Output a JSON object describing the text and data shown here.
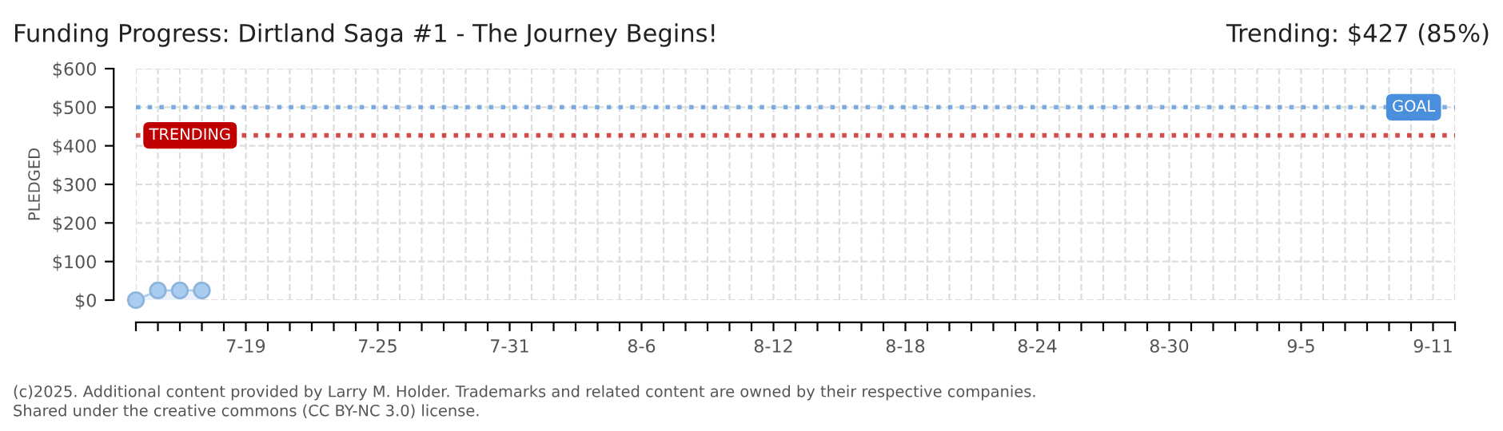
{
  "chart_data": {
    "type": "area",
    "title": "Funding Progress: Dirtland Saga #1 - The Journey Begins!",
    "ylabel": "PLEDGED",
    "x": [
      "2025-07-14",
      "2025-07-15",
      "2025-07-16",
      "2025-07-17"
    ],
    "series": [
      {
        "color": "#a8cdf0",
        "values": [
          0,
          25,
          25,
          25
        ]
      }
    ],
    "marker": "circle",
    "grid": true,
    "xlim": [
      "2025-07-14",
      "2025-09-12"
    ],
    "xticks": [
      {
        "value": "2025-07-14",
        "label": null
      },
      {
        "value": "2025-07-15",
        "label": null
      },
      {
        "value": "2025-07-16",
        "label": null
      },
      {
        "value": "2025-07-17",
        "label": null
      },
      {
        "value": "2025-07-18",
        "label": null
      },
      {
        "value": "2025-07-19",
        "label": "7-19"
      },
      {
        "value": "2025-07-20",
        "label": null
      },
      {
        "value": "2025-07-21",
        "label": null
      },
      {
        "value": "2025-07-22",
        "label": null
      },
      {
        "value": "2025-07-23",
        "label": null
      },
      {
        "value": "2025-07-24",
        "label": null
      },
      {
        "value": "2025-07-25",
        "label": "7-25"
      },
      {
        "value": "2025-07-26",
        "label": null
      },
      {
        "value": "2025-07-27",
        "label": null
      },
      {
        "value": "2025-07-28",
        "label": null
      },
      {
        "value": "2025-07-29",
        "label": null
      },
      {
        "value": "2025-07-30",
        "label": null
      },
      {
        "value": "2025-07-31",
        "label": "7-31"
      },
      {
        "value": "2025-08-01",
        "label": null
      },
      {
        "value": "2025-08-02",
        "label": null
      },
      {
        "value": "2025-08-03",
        "label": null
      },
      {
        "value": "2025-08-04",
        "label": null
      },
      {
        "value": "2025-08-05",
        "label": null
      },
      {
        "value": "2025-08-06",
        "label": "8-6"
      },
      {
        "value": "2025-08-07",
        "label": null
      },
      {
        "value": "2025-08-08",
        "label": null
      },
      {
        "value": "2025-08-09",
        "label": null
      },
      {
        "value": "2025-08-10",
        "label": null
      },
      {
        "value": "2025-08-11",
        "label": null
      },
      {
        "value": "2025-08-12",
        "label": "8-12"
      },
      {
        "value": "2025-08-13",
        "label": null
      },
      {
        "value": "2025-08-14",
        "label": null
      },
      {
        "value": "2025-08-15",
        "label": null
      },
      {
        "value": "2025-08-16",
        "label": null
      },
      {
        "value": "2025-08-17",
        "label": null
      },
      {
        "value": "2025-08-18",
        "label": "8-18"
      },
      {
        "value": "2025-08-19",
        "label": null
      },
      {
        "value": "2025-08-20",
        "label": null
      },
      {
        "value": "2025-08-21",
        "label": null
      },
      {
        "value": "2025-08-22",
        "label": null
      },
      {
        "value": "2025-08-23",
        "label": null
      },
      {
        "value": "2025-08-24",
        "label": "8-24"
      },
      {
        "value": "2025-08-25",
        "label": null
      },
      {
        "value": "2025-08-26",
        "label": null
      },
      {
        "value": "2025-08-27",
        "label": null
      },
      {
        "value": "2025-08-28",
        "label": null
      },
      {
        "value": "2025-08-29",
        "label": null
      },
      {
        "value": "2025-08-30",
        "label": "8-30"
      },
      {
        "value": "2025-08-31",
        "label": null
      },
      {
        "value": "2025-09-01",
        "label": null
      },
      {
        "value": "2025-09-02",
        "label": null
      },
      {
        "value": "2025-09-03",
        "label": null
      },
      {
        "value": "2025-09-04",
        "label": null
      },
      {
        "value": "2025-09-05",
        "label": "9-5"
      },
      {
        "value": "2025-09-06",
        "label": null
      },
      {
        "value": "2025-09-07",
        "label": null
      },
      {
        "value": "2025-09-08",
        "label": null
      },
      {
        "value": "2025-09-09",
        "label": null
      },
      {
        "value": "2025-09-10",
        "label": null
      },
      {
        "value": "2025-09-11",
        "label": "9-11"
      },
      {
        "value": "2025-09-12",
        "label": null
      }
    ],
    "ylim": [
      0,
      600
    ],
    "yticks": [
      {
        "value": 0,
        "label": "$0"
      },
      {
        "value": 100,
        "label": "$100"
      },
      {
        "value": 200,
        "label": "$200"
      },
      {
        "value": 300,
        "label": "$300"
      },
      {
        "value": 400,
        "label": "$400"
      },
      {
        "value": 500,
        "label": "$500"
      },
      {
        "value": 600,
        "label": "$600"
      }
    ],
    "ref_lines": [
      {
        "axis": "y",
        "value": 500,
        "label": "GOAL",
        "color": "#4a8fdb",
        "line_style": "dotted"
      },
      {
        "axis": "y",
        "value": 427,
        "label": "TRENDING",
        "color": "#c00000",
        "line_style": "dotted"
      }
    ],
    "annotations": [
      "Trending: $427 (85%)",
      "(c)2025. Additional content provided by Larry M. Holder. Trademarks and related content are owned by their respective companies.",
      "Shared under the creative commons (CC BY-NC 3.0) license."
    ]
  }
}
